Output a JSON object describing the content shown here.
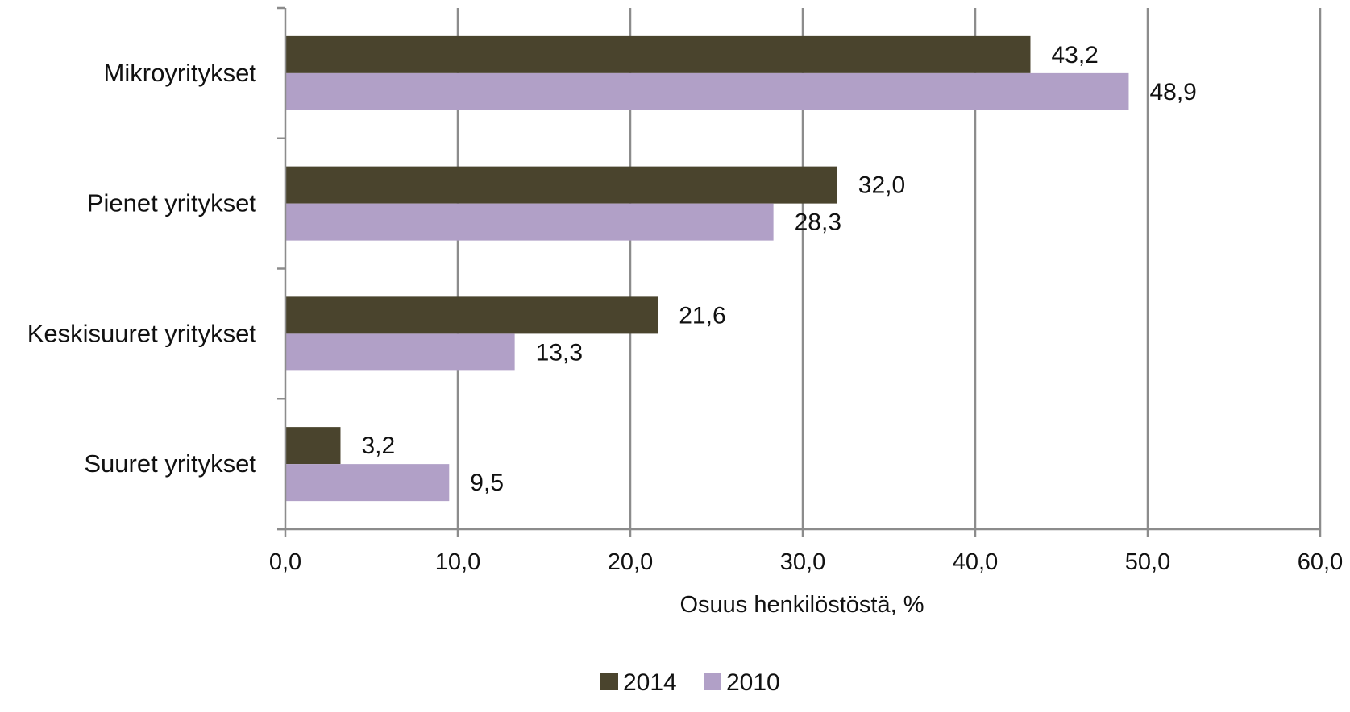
{
  "chart_data": {
    "type": "bar",
    "orientation": "horizontal",
    "categories": [
      "Mikroyritykset",
      "Pienet yritykset",
      "Keskisuuret yritykset",
      "Suuret yritykset"
    ],
    "series": [
      {
        "name": "2014",
        "color": "#4a442d",
        "values": [
          43.2,
          32.0,
          21.6,
          3.2
        ],
        "labels": [
          "43,2",
          "32,0",
          "21,6",
          "3,2"
        ]
      },
      {
        "name": "2010",
        "color": "#b1a0c7",
        "values": [
          48.9,
          28.3,
          13.3,
          9.5
        ],
        "labels": [
          "48,9",
          "28,3",
          "13,3",
          "9,5"
        ]
      }
    ],
    "xlim": [
      0,
      60
    ],
    "xticks": [
      0,
      10,
      20,
      30,
      40,
      50,
      60
    ],
    "xtick_labels": [
      "0,0",
      "10,0",
      "20,0",
      "30,0",
      "40,0",
      "50,0",
      "60,0"
    ],
    "xlabel": "Osuus henkilöstöstä, %",
    "ylabel": "",
    "title": "",
    "grid": "vertical",
    "legend_position": "bottom"
  }
}
